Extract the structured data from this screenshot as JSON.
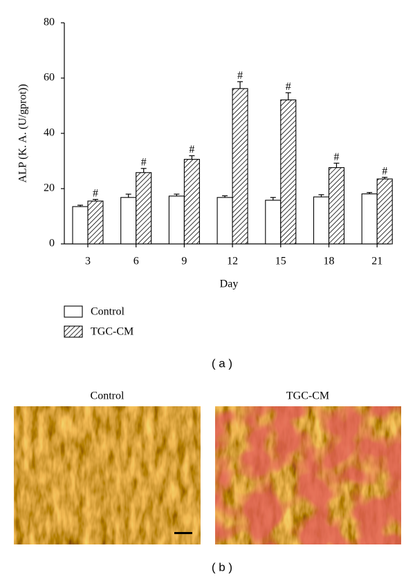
{
  "chart_data": {
    "type": "bar",
    "y_label": "ALP (K. A. (U/gprot))",
    "x_label": "Day",
    "categories": [
      "3",
      "6",
      "9",
      "12",
      "15",
      "18",
      "21"
    ],
    "series": [
      {
        "name": "Control",
        "color": "#ffffff",
        "hatch": false,
        "values": [
          13.5,
          16.8,
          17.3,
          16.8,
          15.8,
          17.0,
          18.1
        ],
        "errors": [
          0.5,
          1.2,
          0.7,
          0.6,
          1.0,
          0.8,
          0.5
        ]
      },
      {
        "name": "TGC-CM",
        "color": "#000000",
        "hatch": true,
        "values": [
          15.5,
          25.8,
          30.6,
          56.2,
          52.1,
          27.6,
          23.5
        ],
        "errors": [
          0.6,
          1.5,
          1.3,
          2.5,
          2.6,
          1.6,
          0.6
        ],
        "significance": [
          "#",
          "#",
          "#",
          "#",
          "#",
          "#",
          "#"
        ]
      }
    ],
    "ylim": [
      0,
      80
    ],
    "yticks": [
      0,
      20,
      40,
      60,
      80
    ],
    "grid": false,
    "legend": "bottom-left"
  },
  "panel_a_label": "( a )",
  "micrographs": [
    {
      "title": "Control"
    },
    {
      "title": "TGC-CM"
    }
  ],
  "panel_b_label": "( b )"
}
